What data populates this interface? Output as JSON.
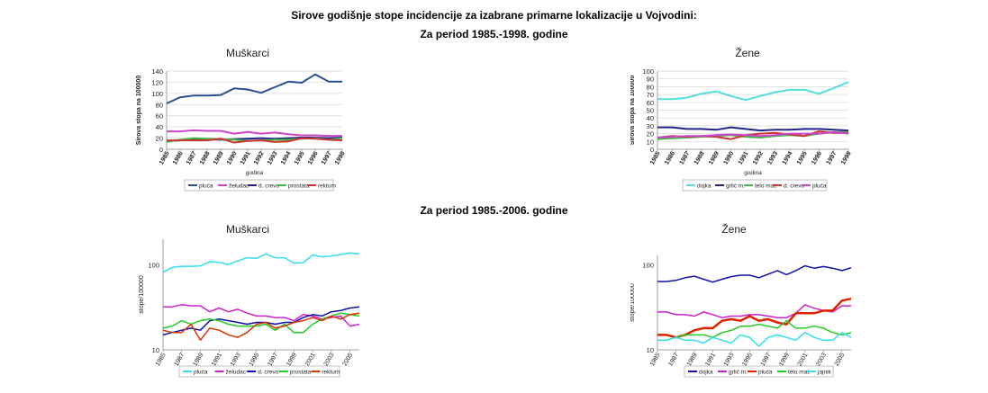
{
  "page": {
    "title": "Sirove godišnje stope incidencije za izabrane primarne lokalizacije u Vojvodini:",
    "period1": "Za period 1985.-1998. godine",
    "period2": "Za period 1985.-2006. godine"
  },
  "chart_data": [
    {
      "type": "line",
      "title": "Muškarci",
      "xlabel": "godina",
      "ylabel": "Sirova stopa na 100000",
      "ylim": [
        0,
        140
      ],
      "yticks": [
        0,
        20,
        40,
        60,
        80,
        100,
        120,
        140
      ],
      "x": [
        "1985",
        "1986",
        "1987",
        "1988",
        "1989",
        "1990",
        "1991",
        "1992",
        "1993",
        "1994",
        "1995",
        "1996",
        "1997",
        "1998"
      ],
      "grid": true,
      "legend": "bottom",
      "series": [
        {
          "name": "pluća",
          "color": "#2E4F8F",
          "values": [
            82,
            93,
            96,
            96,
            97,
            109,
            107,
            101,
            111,
            121,
            119,
            134,
            121,
            121
          ]
        },
        {
          "name": "želudac",
          "color": "#CC44CC",
          "values": [
            32,
            32,
            34,
            33,
            33,
            28,
            31,
            28,
            30,
            27,
            25,
            25,
            24,
            24
          ]
        },
        {
          "name": "d. crevo",
          "color": "#22228A",
          "values": [
            15,
            16,
            17,
            18,
            17,
            18,
            19,
            20,
            19,
            20,
            21,
            21,
            20,
            21
          ]
        },
        {
          "name": "prostata",
          "color": "#44BB44",
          "values": [
            13,
            17,
            20,
            19,
            18,
            17,
            15,
            16,
            17,
            17,
            19,
            20,
            17,
            20
          ]
        },
        {
          "name": "rektum",
          "color": "#CC3333",
          "values": [
            16,
            16,
            16,
            16,
            19,
            12,
            15,
            16,
            13,
            14,
            20,
            19,
            17,
            16
          ]
        }
      ]
    },
    {
      "type": "line",
      "title": "Žene",
      "xlabel": "godina",
      "ylabel": "Sirova stopa na 100000",
      "ylim": [
        0,
        100
      ],
      "yticks": [
        0,
        10,
        20,
        30,
        40,
        50,
        60,
        70,
        80,
        90,
        100
      ],
      "x": [
        "1985",
        "1986",
        "1987",
        "1988",
        "1989",
        "1990",
        "1991",
        "1992",
        "1993",
        "1994",
        "1995",
        "1996",
        "1997",
        "1998"
      ],
      "grid": true,
      "legend": "bottom",
      "series": [
        {
          "name": "dojka",
          "color": "#55DDDD",
          "values": [
            64,
            64,
            66,
            71,
            74,
            68,
            63,
            68,
            73,
            76,
            76,
            71,
            78,
            86
          ]
        },
        {
          "name": "grlić m.",
          "color": "#22228A",
          "values": [
            28,
            28,
            26,
            26,
            25,
            28,
            26,
            24,
            25,
            25,
            26,
            26,
            25,
            24
          ]
        },
        {
          "name": "telo mat.",
          "color": "#44BB44",
          "values": [
            13,
            14,
            15,
            16,
            17,
            18,
            16,
            15,
            17,
            18,
            17,
            20,
            22,
            22
          ]
        },
        {
          "name": "d. crevo",
          "color": "#CC3333",
          "values": [
            15,
            17,
            16,
            17,
            16,
            13,
            18,
            20,
            21,
            19,
            17,
            23,
            21,
            21
          ]
        },
        {
          "name": "pluća",
          "color": "#CC44CC",
          "values": [
            15,
            16,
            17,
            17,
            18,
            19,
            18,
            17,
            18,
            20,
            20,
            20,
            22,
            20
          ]
        }
      ]
    },
    {
      "type": "line",
      "title": "Muškarci",
      "ylabel": "stope/100000",
      "yscale": "log",
      "ylim": [
        10,
        200
      ],
      "yticks": [
        10,
        100
      ],
      "x": [
        "1985",
        "1986",
        "1987",
        "1988",
        "1989",
        "1990",
        "1991",
        "1992",
        "1993",
        "1994",
        "1995",
        "1996",
        "1997",
        "1998",
        "1999",
        "2000",
        "2001",
        "2002",
        "2003",
        "2004",
        "2005",
        "2006"
      ],
      "xtick_labels": [
        "1985",
        "1987",
        "1989",
        "1991",
        "1993",
        "1995",
        "1997",
        "1999",
        "2001",
        "2003",
        "2005"
      ],
      "grid": false,
      "legend": "bottom",
      "series": [
        {
          "name": "pluća",
          "color": "#33DDEE",
          "values": [
            82,
            93,
            96,
            96,
            97,
            109,
            107,
            101,
            111,
            121,
            119,
            134,
            121,
            121,
            105,
            106,
            131,
            124,
            127,
            132,
            138,
            134
          ]
        },
        {
          "name": "želudac",
          "color": "#CC22CC",
          "values": [
            32,
            32,
            34,
            33,
            33,
            28,
            31,
            28,
            30,
            27,
            25,
            25,
            24,
            24,
            22,
            26,
            25,
            23,
            24,
            25,
            19,
            20
          ]
        },
        {
          "name": "d. crevo",
          "color": "#1111AA",
          "values": [
            15,
            16,
            17,
            18,
            17,
            22,
            23,
            22,
            21,
            20,
            21,
            21,
            20,
            21,
            21,
            24,
            26,
            25,
            28,
            29,
            31,
            32
          ]
        },
        {
          "name": "prostata",
          "color": "#22CC22",
          "values": [
            18,
            19,
            22,
            20,
            22,
            23,
            22,
            20,
            19,
            19,
            19,
            20,
            17,
            20,
            16,
            16,
            20,
            23,
            25,
            27,
            26,
            25
          ]
        },
        {
          "name": "rektum",
          "color": "#DD3300",
          "values": [
            17,
            16,
            16,
            20,
            13,
            18,
            17,
            15,
            14,
            16,
            20,
            21,
            18,
            19,
            21,
            22,
            24,
            22,
            25,
            23,
            26,
            27
          ]
        }
      ]
    },
    {
      "type": "line",
      "title": "Žene",
      "ylabel": "stope/100000",
      "yscale": "log",
      "ylim": [
        10,
        130
      ],
      "yticks": [
        10,
        100
      ],
      "x": [
        "1985",
        "1986",
        "1987",
        "1988",
        "1989",
        "1990",
        "1991",
        "1992",
        "1993",
        "1994",
        "1995",
        "1996",
        "1997",
        "1998",
        "1999",
        "2000",
        "2001",
        "2002",
        "2003",
        "2004",
        "2005",
        "2006"
      ],
      "xtick_labels": [
        "1985",
        "1987",
        "1989",
        "1991",
        "1993",
        "1995",
        "1997",
        "1999",
        "2001",
        "2003",
        "2005"
      ],
      "grid": false,
      "legend": "bottom",
      "series": [
        {
          "name": "dojka",
          "color": "#1111AA",
          "values": [
            64,
            64,
            66,
            71,
            74,
            68,
            63,
            68,
            73,
            76,
            76,
            71,
            78,
            86,
            77,
            86,
            98,
            92,
            96,
            92,
            86,
            93
          ]
        },
        {
          "name": "grlić m.",
          "color": "#CC22CC",
          "values": [
            28,
            28,
            26,
            26,
            25,
            28,
            26,
            24,
            25,
            25,
            26,
            26,
            25,
            24,
            24,
            27,
            34,
            31,
            29,
            28,
            33,
            33
          ]
        },
        {
          "name": "pluća",
          "color": "#DD2200",
          "values": [
            15,
            15,
            14,
            15,
            17,
            18,
            18,
            22,
            23,
            22,
            25,
            22,
            23,
            21,
            20,
            27,
            27,
            27,
            29,
            29,
            38,
            40
          ]
        },
        {
          "name": "telo mat.",
          "color": "#22CC22",
          "values": [
            13,
            13,
            14,
            15,
            15,
            15,
            14,
            16,
            17,
            19,
            19,
            20,
            19,
            18,
            22,
            18,
            18,
            19,
            18,
            16,
            15,
            16
          ]
        },
        {
          "name": "jajnik",
          "color": "#33DDEE",
          "values": [
            13,
            13,
            14,
            13,
            13,
            12,
            14,
            13,
            12,
            15,
            14,
            11,
            14,
            15,
            14,
            13,
            16,
            14,
            13,
            13,
            16,
            14
          ]
        }
      ]
    }
  ]
}
